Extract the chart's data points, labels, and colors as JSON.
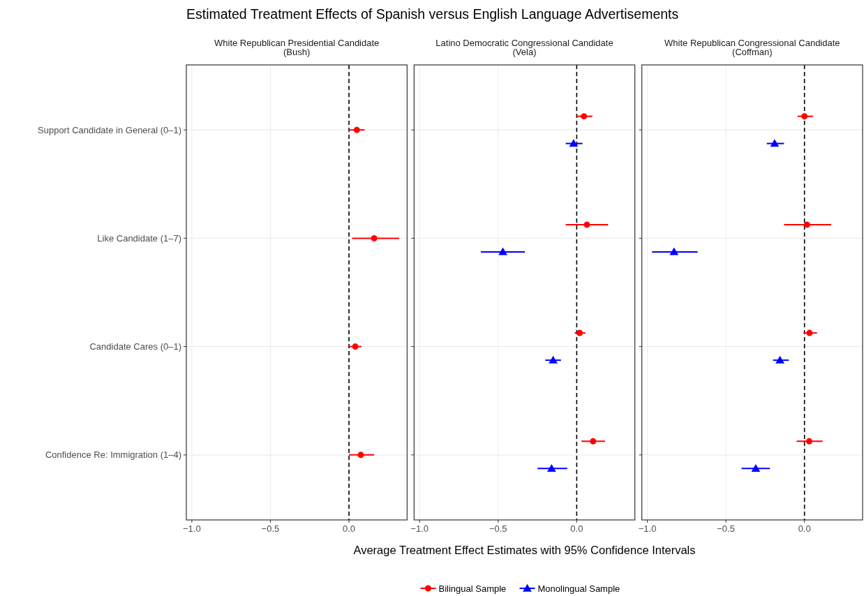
{
  "chart_data": [
    {
      "type": "scatter",
      "orientation": "horizontal",
      "title": "Estimated Treatment Effects of Spanish versus English Language Advertisements",
      "subtitle": "White Republican Presidential Candidate\n(Bush)",
      "categories": [
        "Support Candidate in General (0–1)",
        "Like Candidate (1–7)",
        "Candidate Cares (0–1)",
        "Confidence Re: Immigration (1–4)"
      ],
      "series": [
        {
          "color": "#ff0000",
          "marker": "circle",
          "values": [
            0.05,
            0.16,
            0.04,
            0.075
          ],
          "errors": [
            [
              0.0,
              0.1
            ],
            [
              0.02,
              0.32
            ],
            [
              0.0,
              0.08
            ],
            [
              0.0,
              0.16
            ]
          ]
        }
      ],
      "xlim": [
        -1.035,
        0.37
      ],
      "xticks": [
        {
          "value": -1,
          "label": "−1.0"
        },
        {
          "value": -0.5,
          "label": "−0.5"
        },
        {
          "value": 0,
          "label": "0.0"
        }
      ],
      "grid": true,
      "ref_lines": [
        {
          "axis": "x",
          "value": 0,
          "color": "#000000",
          "line_style": "dashed"
        }
      ]
    },
    {
      "type": "scatter",
      "orientation": "horizontal",
      "subtitle": "Latino Democratic Congressional Candidate\n(Vela)",
      "xlabel": "Average Treatment Effect Estimates with 95% Confidence Intervals",
      "categories": [
        null,
        null,
        null,
        null
      ],
      "series": [
        {
          "name": "Bilingual Sample",
          "color": "#ff0000",
          "marker": "circle",
          "values": [
            0.046,
            0.065,
            0.019,
            0.104
          ],
          "errors": [
            [
              0.0,
              0.1
            ],
            [
              -0.07,
              0.2
            ],
            [
              -0.013,
              0.056
            ],
            [
              0.03,
              0.18
            ]
          ]
        },
        {
          "name": "Monolingual Sample",
          "color": "#0000ff",
          "marker": "triangle",
          "values": [
            -0.02,
            -0.47,
            -0.15,
            -0.16
          ],
          "errors": [
            [
              -0.07,
              0.037
            ],
            [
              -0.61,
              -0.33
            ],
            [
              -0.2,
              -0.1
            ],
            [
              -0.25,
              -0.06
            ]
          ]
        }
      ],
      "xlim": [
        -1.035,
        0.37
      ],
      "xticks": [
        {
          "value": -1,
          "label": "−1.0"
        },
        {
          "value": -0.5,
          "label": "−0.5"
        },
        {
          "value": 0,
          "label": "0.0"
        }
      ],
      "grid": true,
      "tick_labels": "x",
      "legend": "bottom",
      "ref_lines": [
        {
          "axis": "x",
          "value": 0,
          "color": "#000000",
          "line_style": "dashed"
        }
      ]
    },
    {
      "type": "scatter",
      "orientation": "horizontal",
      "subtitle": "White Republican Congressional Candidate\n(Coffman)",
      "categories": [
        null,
        null,
        null,
        null
      ],
      "series": [
        {
          "color": "#ff0000",
          "marker": "circle",
          "values": [
            0.0,
            0.016,
            0.032,
            0.03
          ],
          "errors": [
            [
              -0.043,
              0.054
            ],
            [
              -0.13,
              0.17
            ],
            [
              -0.006,
              0.08
            ],
            [
              -0.05,
              0.116
            ]
          ]
        },
        {
          "color": "#0000ff",
          "marker": "triangle",
          "values": [
            -0.19,
            -0.83,
            -0.156,
            -0.31
          ],
          "errors": [
            [
              -0.24,
              -0.13
            ],
            [
              -0.97,
              -0.68
            ],
            [
              -0.2,
              -0.1
            ],
            [
              -0.4,
              -0.22
            ]
          ]
        }
      ],
      "xlim": [
        -1.035,
        0.37
      ],
      "xticks": [
        {
          "value": -1,
          "label": "−1.0"
        },
        {
          "value": -0.5,
          "label": "−0.5"
        },
        {
          "value": 0,
          "label": "0.0"
        }
      ],
      "grid": true,
      "tick_labels": "x",
      "ref_lines": [
        {
          "axis": "x",
          "value": 0,
          "color": "#000000",
          "line_style": "dashed"
        }
      ]
    }
  ]
}
